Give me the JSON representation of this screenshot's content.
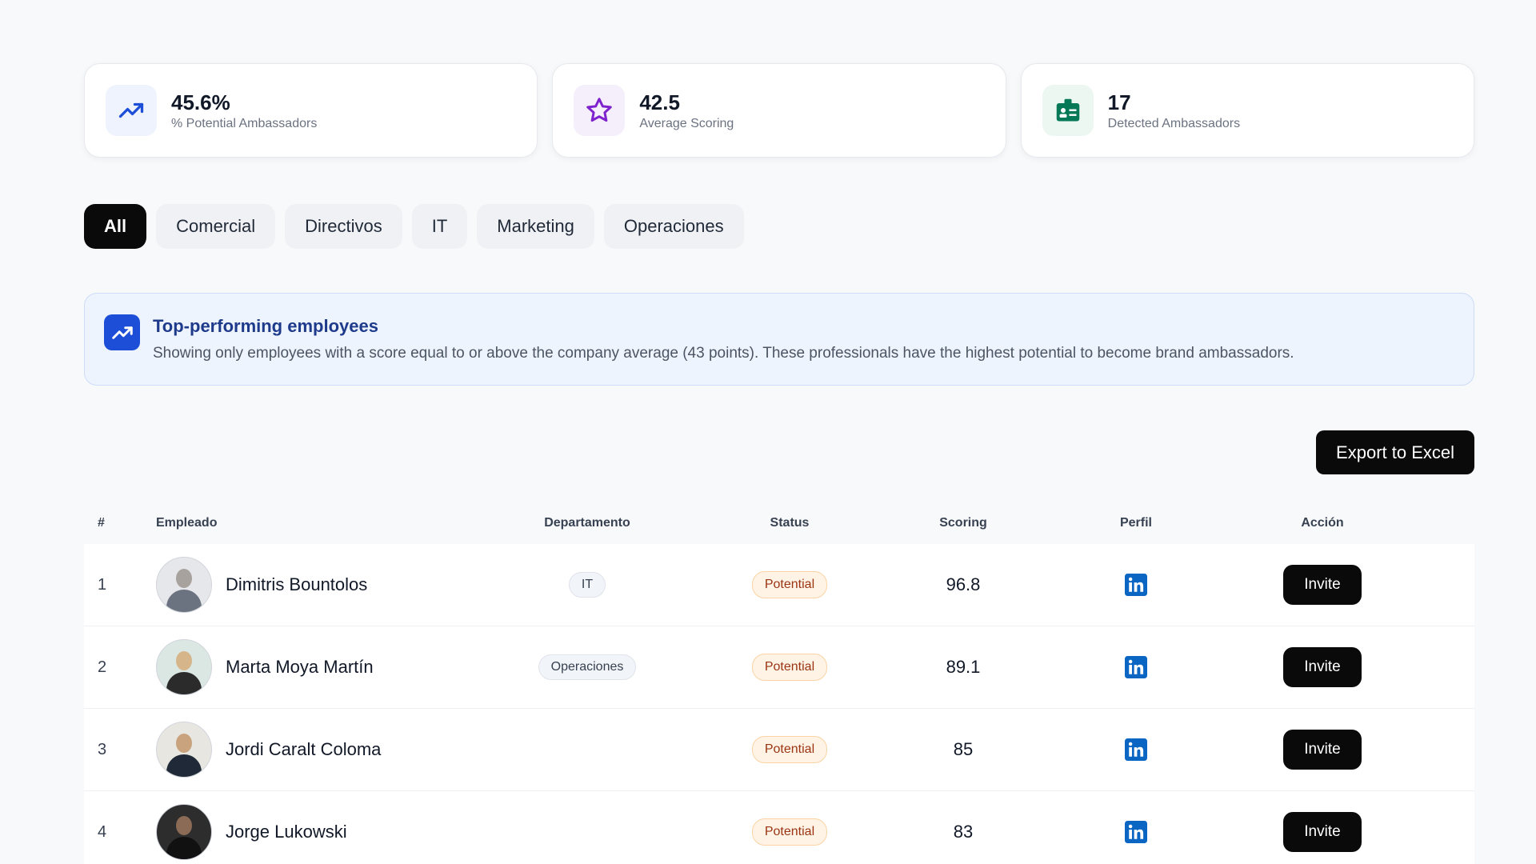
{
  "stats": [
    {
      "value": "45.6%",
      "label": "% Potential Ambassadors",
      "icon": "trending-up-icon",
      "color": "#1d4ed8"
    },
    {
      "value": "42.5",
      "label": "Average Scoring",
      "icon": "star-icon",
      "color": "#7e22ce"
    },
    {
      "value": "17",
      "label": "Detected Ambassadors",
      "icon": "id-badge-icon",
      "color": "#047857"
    }
  ],
  "filters": [
    {
      "label": "All",
      "active": true
    },
    {
      "label": "Comercial",
      "active": false
    },
    {
      "label": "Directivos",
      "active": false
    },
    {
      "label": "IT",
      "active": false
    },
    {
      "label": "Marketing",
      "active": false
    },
    {
      "label": "Operaciones",
      "active": false
    }
  ],
  "banner": {
    "title": "Top-performing employees",
    "text": "Showing only employees with a score equal to or above the company average (43 points). These professionals have the highest potential to become brand ambassadors."
  },
  "toolbar": {
    "export_label": "Export to Excel"
  },
  "table": {
    "headers": {
      "num": "#",
      "employee": "Empleado",
      "department": "Departamento",
      "status": "Status",
      "scoring": "Scoring",
      "profile": "Perfil",
      "action": "Acción"
    },
    "rows": [
      {
        "num": "1",
        "name": "Dimitris Bountolos",
        "department": "IT",
        "status": "Potential",
        "score": "96.8",
        "invite": "Invite",
        "avatar_bg": "#e5e7eb",
        "avatar_fg": "#6b7280"
      },
      {
        "num": "2",
        "name": "Marta Moya Martín",
        "department": "Operaciones",
        "status": "Potential",
        "score": "89.1",
        "invite": "Invite",
        "avatar_bg": "#dbe7e3",
        "avatar_fg": "#2b2b2b"
      },
      {
        "num": "3",
        "name": "Jordi Caralt Coloma",
        "department": "",
        "status": "Potential",
        "score": "85",
        "invite": "Invite",
        "avatar_bg": "#e8e6e1",
        "avatar_fg": "#1f2937"
      },
      {
        "num": "4",
        "name": "Jorge Lukowski",
        "department": "",
        "status": "Potential",
        "score": "83",
        "invite": "Invite",
        "avatar_bg": "#2d2d2d",
        "avatar_fg": "#111111"
      }
    ]
  }
}
